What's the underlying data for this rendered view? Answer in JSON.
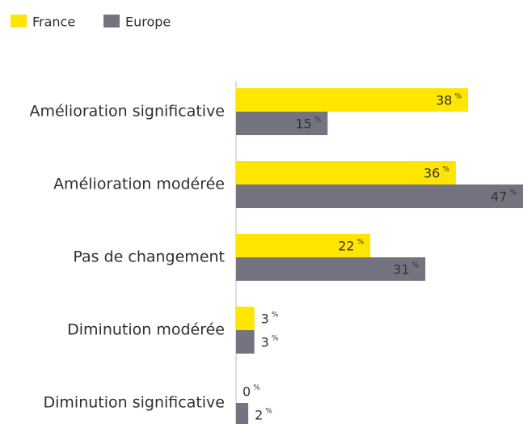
{
  "chart_data": {
    "type": "bar",
    "orientation": "horizontal",
    "categories": [
      "Amélioration significative",
      "Amélioration modérée",
      "Pas de changement",
      "Diminution modérée",
      "Diminution significative"
    ],
    "series": [
      {
        "name": "France",
        "color": "#ffe600",
        "values": [
          38,
          36,
          22,
          3,
          0
        ],
        "value_labels": [
          "38%",
          "36%",
          "22%",
          "3%",
          "0%"
        ]
      },
      {
        "name": "Europe",
        "color": "#747480",
        "values": [
          15,
          47,
          31,
          3,
          2
        ],
        "value_labels": [
          "15%",
          "47%",
          "31%",
          "3%",
          "2%"
        ]
      }
    ],
    "xlim": [
      0,
      47
    ],
    "legend": "top-left"
  }
}
